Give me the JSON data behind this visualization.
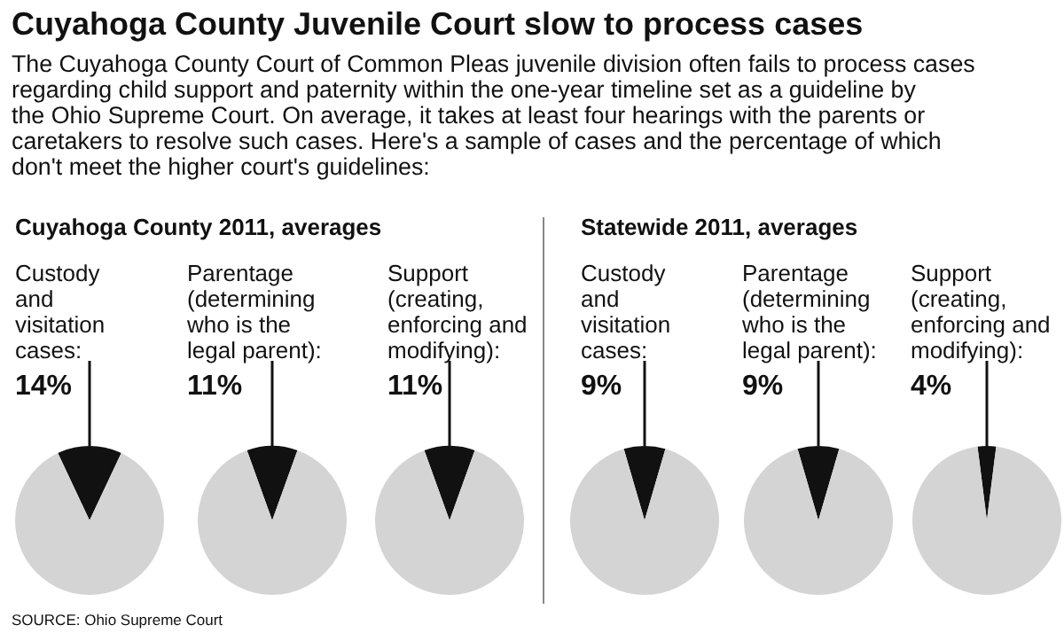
{
  "chart_data": [
    {
      "type": "other",
      "title": "Cuyahoga County Juvenile Court slow to process cases",
      "subtitle": "The Cuyahoga County Court of Common Pleas juvenile division often fails to process cases regarding child support and paternity within the one-year timeline set as a guideline by the Ohio Supreme Court. On average, it takes at least four hearings with the parents or caretakers to resolve such cases. Here's a sample of cases and the percentage of which don't meet the higher court's guidelines:",
      "annotations": [
        "SOURCE: Ohio Supreme Court"
      ]
    },
    {
      "type": "pie",
      "title": "Cuyahoga County 2011, averages",
      "subtitle": "Custody and visitation cases:",
      "categories": [
        null,
        null
      ],
      "values": [
        14,
        86
      ],
      "colors": [
        "#111111",
        "#d4d4d4"
      ],
      "value_labels": [
        "14%",
        null
      ]
    },
    {
      "type": "pie",
      "subtitle": "Parentage (determining who is the legal parent):",
      "categories": [
        null,
        null
      ],
      "values": [
        11,
        89
      ],
      "colors": [
        "#111111",
        "#d4d4d4"
      ],
      "value_labels": [
        "11%",
        null
      ]
    },
    {
      "type": "pie",
      "subtitle": "Support (creating, enforcing and modifying):",
      "categories": [
        null,
        null
      ],
      "values": [
        11,
        89
      ],
      "colors": [
        "#111111",
        "#d4d4d4"
      ],
      "value_labels": [
        "11%",
        null
      ]
    },
    {
      "type": "pie",
      "title": "Statewide 2011, averages",
      "subtitle": "Custody and visitation cases:",
      "categories": [
        null,
        null
      ],
      "values": [
        9,
        91
      ],
      "colors": [
        "#111111",
        "#d4d4d4"
      ],
      "value_labels": [
        "9%",
        null
      ]
    },
    {
      "type": "pie",
      "subtitle": "Parentage (determining who is the legal parent):",
      "categories": [
        null,
        null
      ],
      "values": [
        9,
        91
      ],
      "colors": [
        "#111111",
        "#d4d4d4"
      ],
      "value_labels": [
        "9%",
        null
      ]
    },
    {
      "type": "pie",
      "subtitle": "Support (creating, enforcing and modifying):",
      "categories": [
        null,
        null
      ],
      "values": [
        4,
        96
      ],
      "colors": [
        "#111111",
        "#d4d4d4"
      ],
      "value_labels": [
        "4%",
        null
      ]
    }
  ]
}
